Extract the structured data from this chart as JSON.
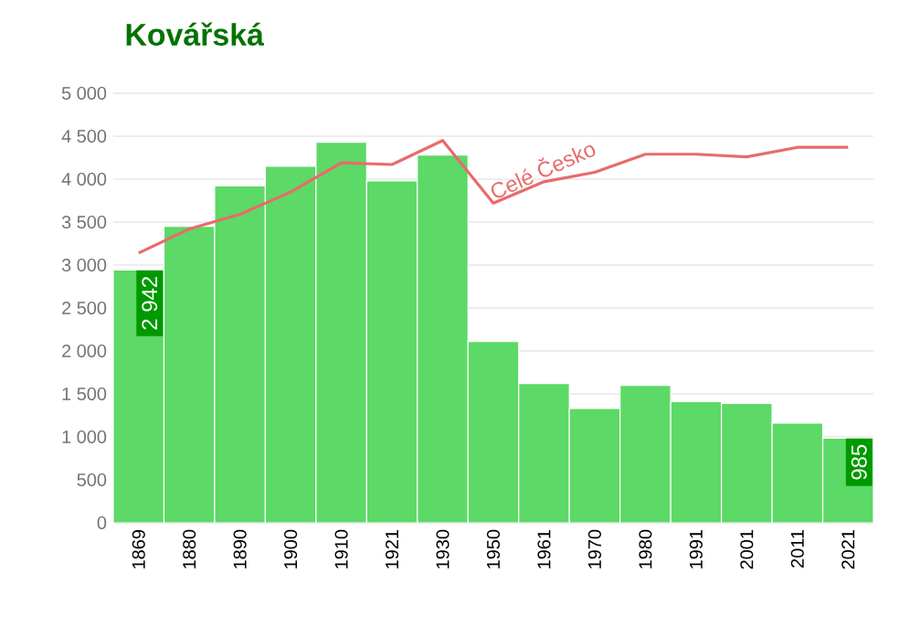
{
  "chart_data": {
    "type": "bar",
    "title": "Kovářská",
    "categories": [
      "1869",
      "1880",
      "1890",
      "1900",
      "1910",
      "1921",
      "1930",
      "1950",
      "1961",
      "1970",
      "1980",
      "1991",
      "2001",
      "2011",
      "2021"
    ],
    "series": [
      {
        "color": "#5cd966",
        "values": [
          2942,
          3450,
          3920,
          4150,
          4430,
          3980,
          4280,
          2110,
          1620,
          1330,
          1600,
          1410,
          1390,
          1160,
          985
        ],
        "value_labels": [
          "2 942",
          null,
          null,
          null,
          null,
          null,
          null,
          null,
          null,
          null,
          null,
          null,
          null,
          null,
          "985"
        ]
      },
      {
        "type": "line",
        "name": "Celé Česko",
        "color": "#e86b6b",
        "values": [
          3140,
          3420,
          3590,
          3850,
          4190,
          4170,
          4450,
          3720,
          3970,
          4080,
          4290,
          4290,
          4260,
          4370,
          4370
        ]
      }
    ],
    "ylim": [
      0,
      5000
    ],
    "yticks": [
      0,
      500,
      {
        "value": 1000,
        "label": "1 000"
      },
      {
        "value": 1500,
        "label": "1 500"
      },
      {
        "value": 2000,
        "label": "2 000"
      },
      {
        "value": 2500,
        "label": "2 500"
      },
      {
        "value": 3000,
        "label": "3 000"
      },
      {
        "value": 3500,
        "label": "3 500"
      },
      {
        "value": 4000,
        "label": "4 000"
      },
      {
        "value": 4500,
        "label": "4 500"
      },
      {
        "value": 5000,
        "label": "5 000"
      }
    ],
    "grid": "y"
  }
}
